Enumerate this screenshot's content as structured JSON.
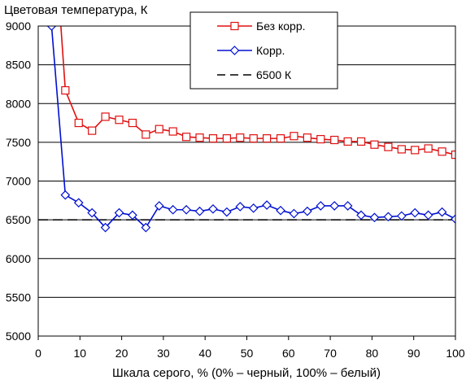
{
  "chart_data": {
    "type": "line",
    "ylabel": "Цветовая температура, К",
    "xlabel": "Шкала серого, % (0% – черный, 100% – белый)",
    "xlim": [
      0,
      100
    ],
    "ylim": [
      5000,
      9000
    ],
    "xticks": [
      0,
      10,
      20,
      30,
      40,
      50,
      60,
      70,
      80,
      90,
      100
    ],
    "yticks": [
      5000,
      5500,
      6000,
      6500,
      7000,
      7500,
      8000,
      8500,
      9000
    ],
    "grid": "horizontal",
    "legend_position": "top-center",
    "series": [
      {
        "name": "Без корр.",
        "color": "#e01010",
        "marker": "square",
        "x": [
          6.5,
          9.7,
          12.9,
          16.1,
          19.4,
          22.6,
          25.8,
          29.0,
          32.3,
          35.5,
          38.7,
          41.9,
          45.2,
          48.4,
          51.6,
          54.8,
          58.1,
          61.3,
          64.5,
          67.7,
          71.0,
          74.2,
          77.4,
          80.6,
          83.9,
          87.1,
          90.3,
          93.5,
          96.8,
          100
        ],
        "y": [
          8170,
          7750,
          7650,
          7830,
          7790,
          7750,
          7600,
          7670,
          7640,
          7570,
          7560,
          7550,
          7550,
          7560,
          7550,
          7550,
          7550,
          7580,
          7560,
          7540,
          7530,
          7510,
          7510,
          7470,
          7440,
          7410,
          7400,
          7420,
          7380,
          7340
        ]
      },
      {
        "name": "Корр.",
        "color": "#0010d0",
        "marker": "diamond",
        "x": [
          3.2,
          6.5,
          9.7,
          12.9,
          16.1,
          19.4,
          22.6,
          25.8,
          29.0,
          32.3,
          35.5,
          38.7,
          41.9,
          45.2,
          48.4,
          51.6,
          54.8,
          58.1,
          61.3,
          64.5,
          67.7,
          71.0,
          74.2,
          77.4,
          80.6,
          83.9,
          87.1,
          90.3,
          93.5,
          96.8,
          100
        ],
        "y": [
          9000,
          6820,
          6720,
          6590,
          6400,
          6590,
          6560,
          6400,
          6680,
          6630,
          6630,
          6610,
          6640,
          6600,
          6670,
          6650,
          6690,
          6620,
          6580,
          6610,
          6680,
          6680,
          6680,
          6560,
          6530,
          6540,
          6550,
          6590,
          6560,
          6600,
          6510
        ]
      },
      {
        "name": "6500 К",
        "color": "#000000",
        "style": "dashed",
        "y_constant": 6500
      }
    ]
  }
}
